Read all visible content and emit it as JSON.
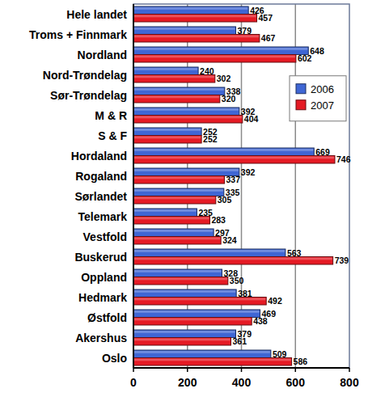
{
  "chart_data": {
    "type": "bar",
    "orientation": "horizontal",
    "categories": [
      "Hele landet",
      "Troms + Finnmark",
      "Nordland",
      "Nord-Trøndelag",
      "Sør-Trøndelag",
      "M & R",
      "S & F",
      "Hordaland",
      "Rogaland",
      "Sørlandet",
      "Telemark",
      "Vestfold",
      "Buskerud",
      "Oppland",
      "Hedmark",
      "Østfold",
      "Akershus",
      "Oslo"
    ],
    "series": [
      {
        "name": "2006",
        "color": "#3f66d4",
        "values": [
          426,
          379,
          648,
          240,
          338,
          392,
          252,
          669,
          392,
          335,
          235,
          297,
          563,
          328,
          381,
          469,
          379,
          509
        ]
      },
      {
        "name": "2007",
        "color": "#e51a24",
        "values": [
          457,
          467,
          602,
          302,
          320,
          404,
          252,
          746,
          337,
          305,
          283,
          324,
          739,
          350,
          492,
          438,
          361,
          586
        ]
      }
    ],
    "xlim": [
      0,
      800
    ],
    "xticks": [
      0,
      200,
      400,
      600,
      800
    ],
    "grid": true,
    "legend": "right",
    "data_labels": true
  }
}
